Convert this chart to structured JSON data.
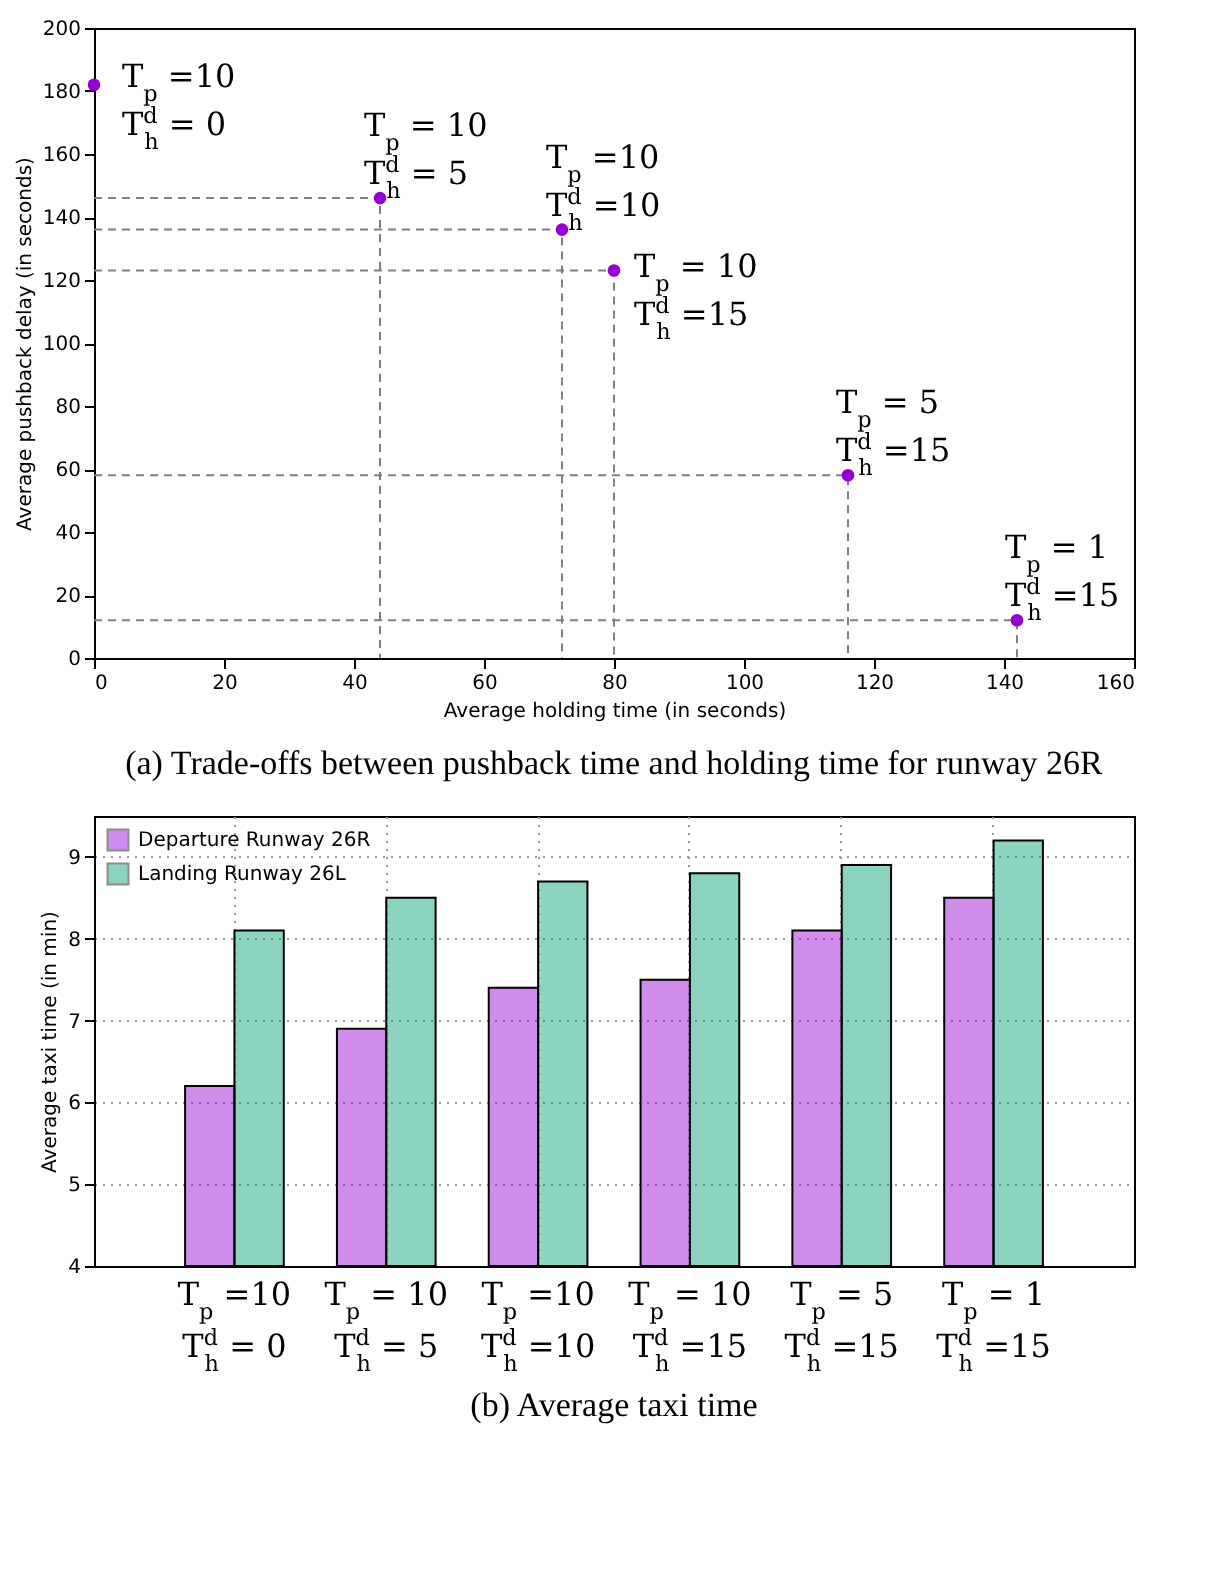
{
  "chart_data": [
    {
      "type": "scatter",
      "title": "(a) Trade-offs between pushback time and holding time for runway 26R",
      "xlabel": "Average holding time (in seconds)",
      "ylabel": "Average pushback delay (in seconds)",
      "xlim": [
        0,
        160
      ],
      "xticks": [
        0,
        20,
        40,
        60,
        80,
        100,
        120,
        140,
        160
      ],
      "ylim": [
        0,
        200
      ],
      "yticks": [
        0,
        20,
        40,
        60,
        80,
        100,
        120,
        140,
        160,
        180,
        200
      ],
      "grid": false,
      "series": [
        {
          "type": "line",
          "color": "#808080",
          "line_style": "dashed",
          "marker": "none",
          "x": [
            0,
            44,
            44
          ],
          "values": [
            146,
            146,
            0
          ]
        },
        {
          "type": "line",
          "color": "#808080",
          "line_style": "dashed",
          "marker": "none",
          "x": [
            0,
            72,
            72
          ],
          "values": [
            136,
            136,
            0
          ]
        },
        {
          "type": "line",
          "color": "#808080",
          "line_style": "dashed",
          "marker": "none",
          "x": [
            0,
            80,
            80
          ],
          "values": [
            123,
            123,
            0
          ]
        },
        {
          "type": "line",
          "color": "#808080",
          "line_style": "dashed",
          "marker": "none",
          "x": [
            0,
            116,
            116
          ],
          "values": [
            58,
            58,
            0
          ]
        },
        {
          "type": "line",
          "color": "#808080",
          "line_style": "dashed",
          "marker": "none",
          "x": [
            0,
            142,
            142
          ],
          "values": [
            12,
            12,
            0
          ]
        },
        {
          "type": "scatter",
          "color": "#9400d3",
          "marker": "circle",
          "x": [
            0,
            44,
            72,
            80,
            116,
            142
          ],
          "values": [
            182,
            146,
            136,
            123,
            58,
            12
          ]
        }
      ],
      "annotations": [
        {
          "text": "T$_{p}$ =10",
          "x": 0,
          "y": 182
        },
        {
          "text": "T$^{d}$$_{h}$ = 0",
          "x": 0,
          "y": 182
        },
        {
          "text": "T$_{p}$ = 10",
          "x": 44,
          "y": 146
        },
        {
          "text": "T$^{d}$$_{h}$ = 5",
          "x": 44,
          "y": 146
        },
        {
          "text": "T$_{p}$ =10",
          "x": 72,
          "y": 136
        },
        {
          "text": "T$^{d}$$_{h}$ =10",
          "x": 72,
          "y": 136
        },
        {
          "text": "T$_{p}$ = 10",
          "x": 80,
          "y": 123
        },
        {
          "text": "T$^{d}$$_{h}$ =15",
          "x": 80,
          "y": 123
        },
        {
          "text": "T$_{p}$ = 5",
          "x": 116,
          "y": 58
        },
        {
          "text": "T$^{d}$$_{h}$ =15",
          "x": 116,
          "y": 58
        },
        {
          "text": "T$_{p}$ =  1",
          "x": 142,
          "y": 12
        },
        {
          "text": "T$^{d}$$_{h}$ =15",
          "x": 142,
          "y": 12
        }
      ]
    },
    {
      "type": "bar",
      "title": "(b) Average taxi time",
      "ylabel": "Average taxi time (in min)",
      "categories": [
        "T$_{p}$ =10\nT$^{d}$$_{h}$ = 0",
        "T$_{p}$ = 10\nT$^{d}$$_{h}$ = 5",
        "T$_{p}$ =10\nT$^{d}$$_{h}$ =10",
        "T$_{p}$ = 10\nT$^{d}$$_{h}$ =15",
        "T$_{p}$ = 5\nT$^{d}$$_{h}$ =15",
        "T$_{p}$ =  1\nT$^{d}$$_{h}$ =15"
      ],
      "ylim": [
        4,
        9.5
      ],
      "yticks": [
        4,
        5,
        6,
        7,
        8,
        9
      ],
      "grid": true,
      "legend": "top left",
      "series": [
        {
          "name": "Departure Runway 26R",
          "color": "#9400d3",
          "values": [
            6.2,
            6.9,
            7.4,
            7.5,
            8.1,
            8.5
          ]
        },
        {
          "name": "Landing Runway 26L",
          "color": "#009e73",
          "values": [
            8.1,
            8.5,
            8.7,
            8.8,
            8.9,
            9.2
          ]
        }
      ]
    }
  ]
}
